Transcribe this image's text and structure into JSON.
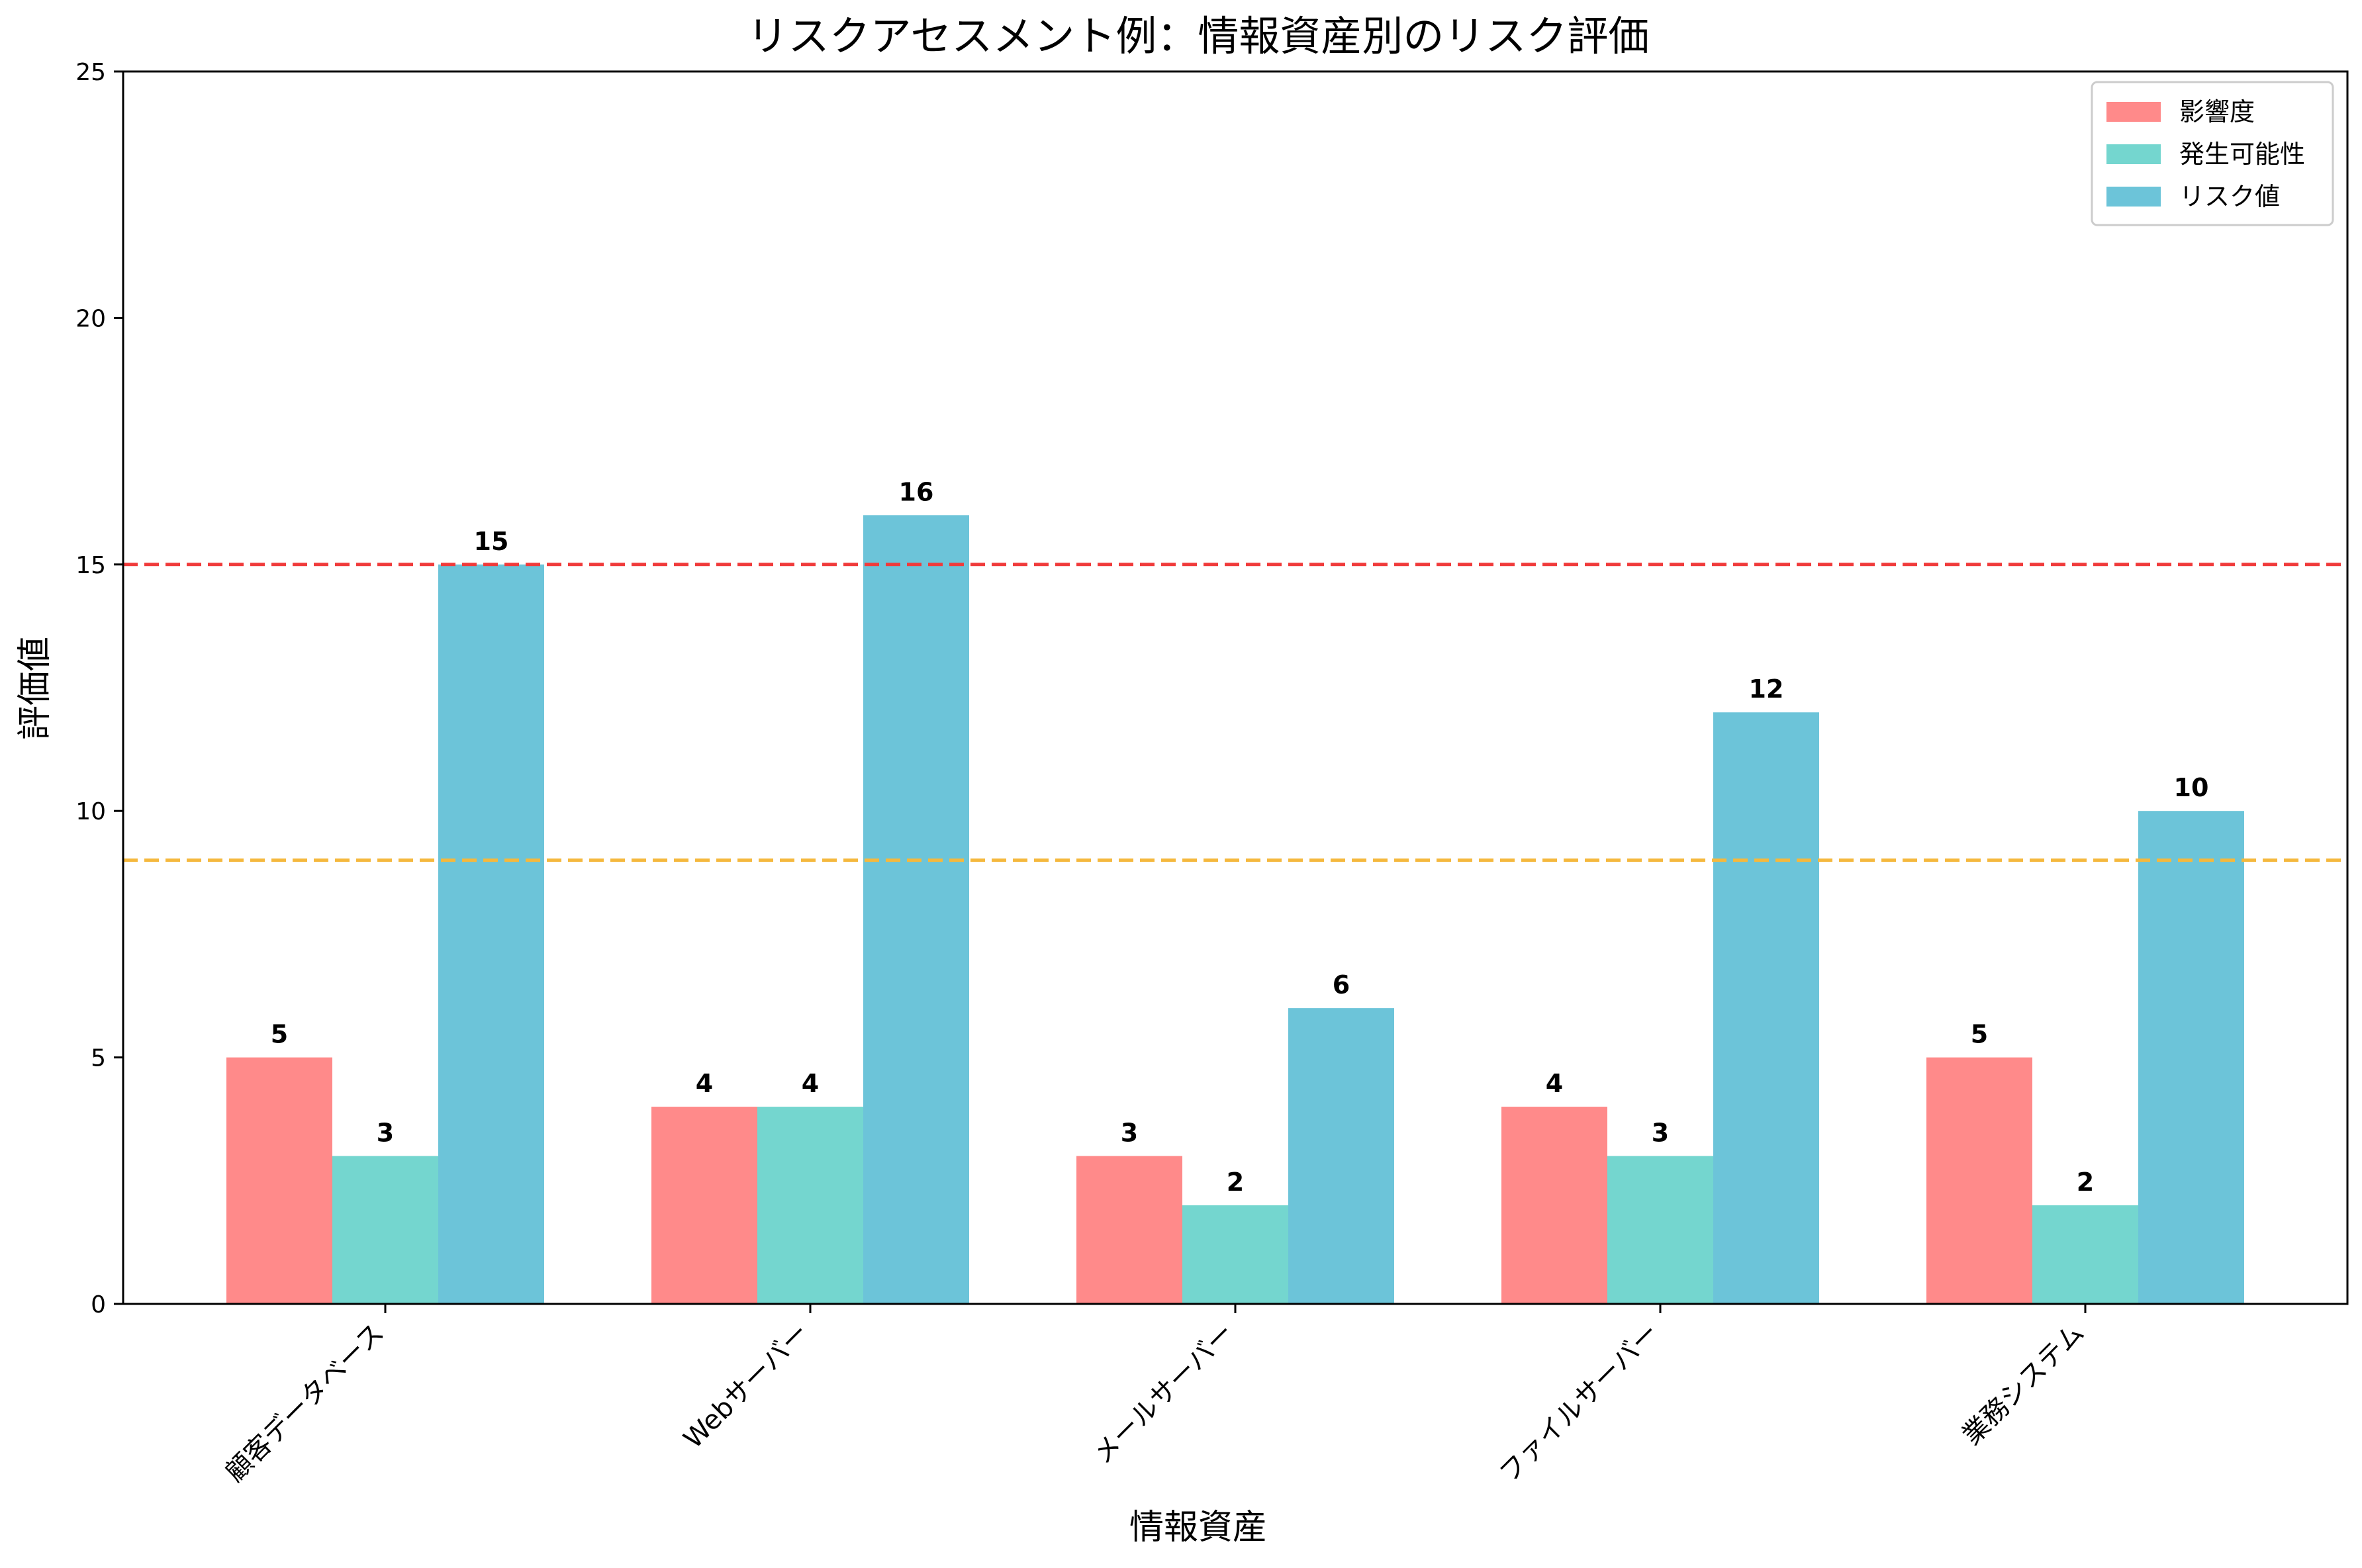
{
  "chart_data": {
    "type": "bar",
    "title": "リスクアセスメント例：情報資産別のリスク評価",
    "xlabel": "情報資産",
    "ylabel": "評価値",
    "categories": [
      "顧客データベース",
      "Webサーバー",
      "メールサーバー",
      "ファイルサーバー",
      "業務システム"
    ],
    "series": [
      {
        "name": "影響度",
        "values": [
          5,
          4,
          3,
          4,
          5
        ],
        "color": "#ff8a8a"
      },
      {
        "name": "発生可能性",
        "values": [
          3,
          4,
          2,
          3,
          2
        ],
        "color": "#74d6cf"
      },
      {
        "name": "リスク値",
        "values": [
          15,
          16,
          6,
          12,
          10
        ],
        "color": "#6cc4d9"
      }
    ],
    "ylim": [
      0,
      25
    ],
    "yticks": [
      0,
      5,
      10,
      15,
      20,
      25
    ],
    "reference_lines": [
      {
        "value": 15,
        "color": "#f03a3a",
        "style": "dashed"
      },
      {
        "value": 9,
        "color": "#f5b83d",
        "style": "dashed"
      }
    ],
    "legend_position": "top-right",
    "grid": false
  }
}
